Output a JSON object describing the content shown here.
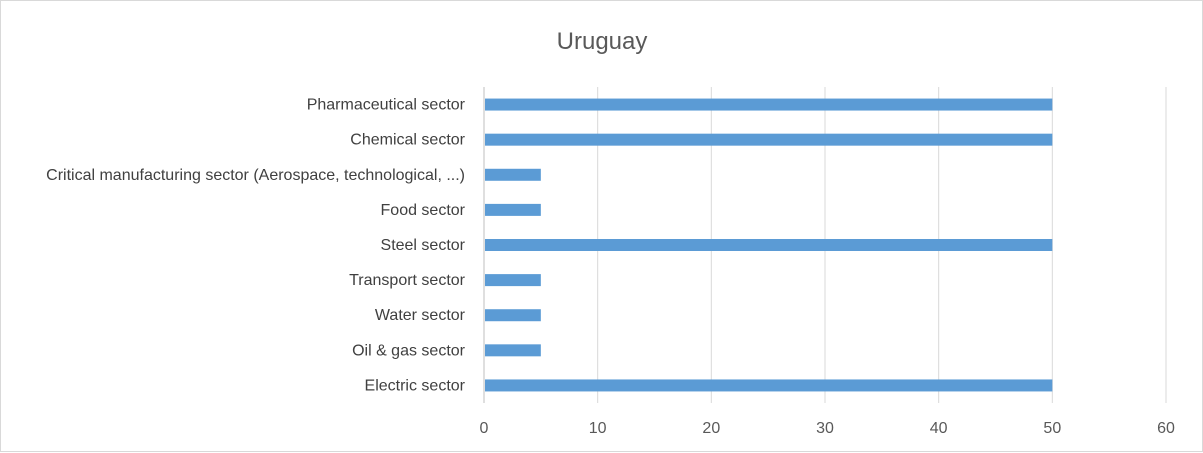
{
  "chart_data": {
    "type": "bar",
    "orientation": "horizontal",
    "title": "Uruguay",
    "categories": [
      "Pharmaceutical sector",
      "Chemical sector",
      "Critical manufacturing sector (Aerospace, technological, ...)",
      "Food sector",
      "Steel sector",
      "Transport sector",
      "Water sector",
      "Oil & gas sector",
      "Electric sector"
    ],
    "values": [
      50,
      50,
      5,
      5,
      50,
      5,
      5,
      5,
      50
    ],
    "xlim": [
      0,
      60
    ],
    "xticks": [
      "0",
      "10",
      "20",
      "30",
      "40",
      "50",
      "60"
    ],
    "grid": true,
    "legend": "none",
    "bar_color": "#5b9bd5"
  }
}
